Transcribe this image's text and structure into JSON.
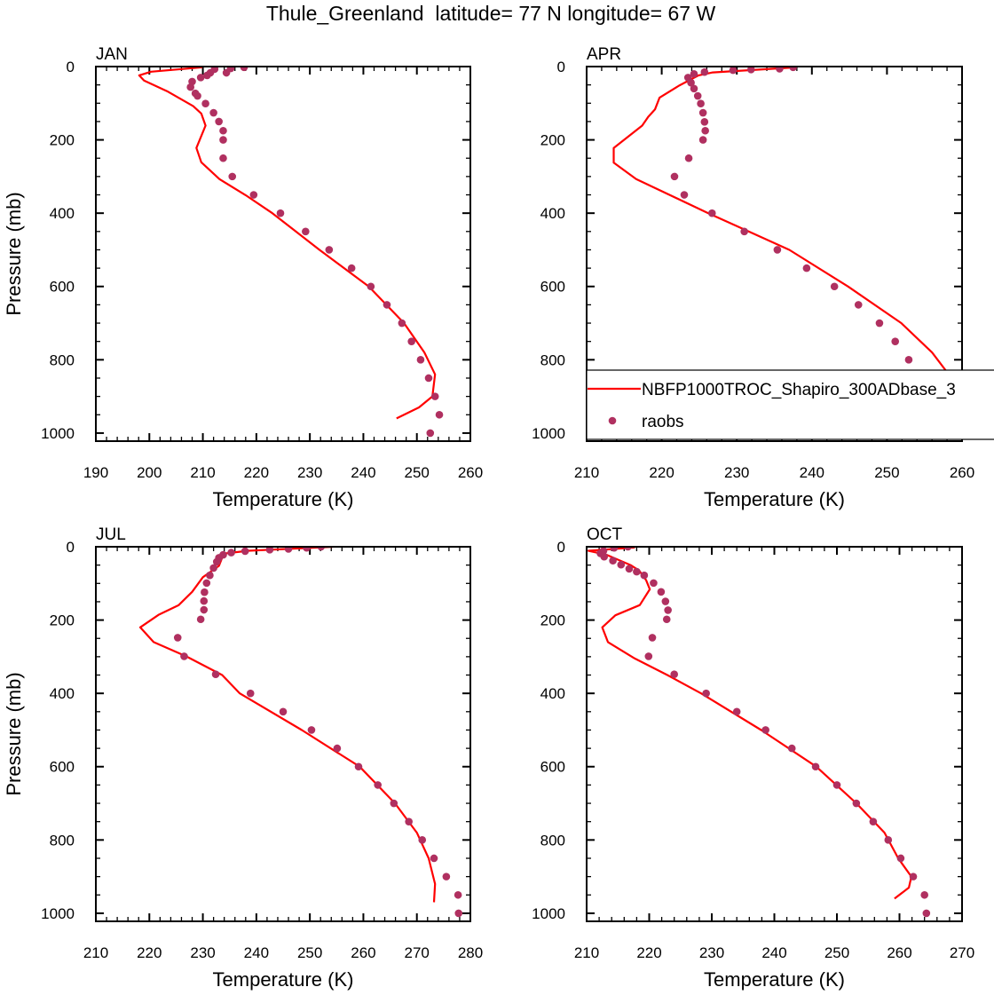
{
  "title": "Thule_Greenland  latitude= 77 N longitude= 67 W",
  "colors": {
    "model_line": "#ff0000",
    "raobs_marker": "#b03060",
    "axis": "#000000"
  },
  "legend": {
    "model_label": "NBFP1000TROC_Shapiro_300ADbase_3",
    "obs_label": "raobs",
    "placement": "inside-bottom-right of APR panel"
  },
  "chart_data": [
    {
      "type": "line+scatter",
      "panel_title": "JAN",
      "xlabel": "Temperature (K)",
      "ylabel": "Pressure (mb)",
      "xlim": [
        190,
        260
      ],
      "xticks": [
        190,
        200,
        210,
        220,
        230,
        240,
        250,
        260
      ],
      "ylim": [
        0,
        1022
      ],
      "yinverted": true,
      "yticks": [
        0,
        200,
        400,
        600,
        800,
        1000
      ],
      "grid": false,
      "model": [
        [
          2,
          209.9
        ],
        [
          14,
          200.3
        ],
        [
          24,
          198.1
        ],
        [
          38,
          199
        ],
        [
          67,
          203.3
        ],
        [
          108,
          208.2
        ],
        [
          128,
          209.7
        ],
        [
          161,
          210.5
        ],
        [
          222,
          208.8
        ],
        [
          261,
          209.7
        ],
        [
          307,
          213.1
        ],
        [
          351,
          218
        ],
        [
          400,
          223
        ],
        [
          500,
          231.8
        ],
        [
          600,
          241
        ],
        [
          700,
          247.6
        ],
        [
          780,
          251.4
        ],
        [
          840,
          253.4
        ],
        [
          900,
          252.9
        ],
        [
          930,
          250.4
        ],
        [
          960,
          246.2
        ]
      ],
      "raobs": [
        [
          2,
          217.7
        ],
        [
          5,
          215.2
        ],
        [
          17,
          214.4
        ],
        [
          7,
          212.2
        ],
        [
          17,
          211.4
        ],
        [
          24,
          210.8
        ],
        [
          30,
          209.6
        ],
        [
          41,
          208
        ],
        [
          56,
          207.7
        ],
        [
          73,
          208.6
        ],
        [
          80,
          209
        ],
        [
          101,
          210.5
        ],
        [
          126,
          212
        ],
        [
          150,
          213
        ],
        [
          175,
          213.8
        ],
        [
          200,
          213.8
        ],
        [
          250,
          213.8
        ],
        [
          300,
          215.5
        ],
        [
          350,
          219.5
        ],
        [
          400,
          224.5
        ],
        [
          450,
          229.2
        ],
        [
          500,
          233.6
        ],
        [
          550,
          237.8
        ],
        [
          600,
          241.4
        ],
        [
          650,
          244.4
        ],
        [
          700,
          247.2
        ],
        [
          750,
          249
        ],
        [
          800,
          250.7
        ],
        [
          850,
          252.2
        ],
        [
          900,
          253.4
        ],
        [
          950,
          254.2
        ],
        [
          1000,
          252.5
        ]
      ]
    },
    {
      "type": "line+scatter",
      "panel_title": "APR",
      "xlabel": "Temperature (K)",
      "ylabel": "",
      "xlim": [
        210,
        260
      ],
      "xticks": [
        210,
        220,
        230,
        240,
        250,
        260
      ],
      "ylim": [
        0,
        1022
      ],
      "yinverted": true,
      "yticks": [
        0,
        200,
        400,
        600,
        800,
        1000
      ],
      "grid": false,
      "model": [
        [
          2,
          238
        ],
        [
          16,
          226.8
        ],
        [
          24,
          224.9
        ],
        [
          52,
          222.3
        ],
        [
          85,
          219.7
        ],
        [
          117,
          219.1
        ],
        [
          137,
          218.2
        ],
        [
          161,
          217.4
        ],
        [
          222,
          213.6
        ],
        [
          262,
          213.6
        ],
        [
          307,
          216.6
        ],
        [
          400,
          226.2
        ],
        [
          500,
          237
        ],
        [
          600,
          244.8
        ],
        [
          700,
          251.9
        ],
        [
          780,
          256
        ],
        [
          850,
          258.6
        ],
        [
          900,
          259.1
        ],
        [
          950,
          258
        ],
        [
          975,
          255
        ]
      ],
      "raobs": [
        [
          2,
          237.5
        ],
        [
          6,
          235.7
        ],
        [
          8,
          231.9
        ],
        [
          10,
          229.5
        ],
        [
          15,
          225.7
        ],
        [
          20,
          224.3
        ],
        [
          30,
          223.5
        ],
        [
          44,
          223.9
        ],
        [
          60,
          224.3
        ],
        [
          80,
          224.8
        ],
        [
          101,
          225.2
        ],
        [
          126,
          225.5
        ],
        [
          151,
          225.7
        ],
        [
          175,
          225.8
        ],
        [
          200,
          225.5
        ],
        [
          250,
          223.6
        ],
        [
          300,
          221.7
        ],
        [
          350,
          223
        ],
        [
          400,
          226.7
        ],
        [
          450,
          231
        ],
        [
          500,
          235.4
        ],
        [
          550,
          239.3
        ],
        [
          600,
          243
        ],
        [
          650,
          246.2
        ],
        [
          700,
          249
        ],
        [
          750,
          251.1
        ],
        [
          800,
          252.9
        ],
        [
          850,
          254.4
        ],
        [
          900,
          255.9
        ],
        [
          950,
          256.9
        ],
        [
          1000,
          257
        ]
      ]
    },
    {
      "type": "line+scatter",
      "panel_title": "JUL",
      "xlabel": "Temperature (K)",
      "ylabel": "Pressure (mb)",
      "xlim": [
        210,
        280
      ],
      "xticks": [
        210,
        220,
        230,
        240,
        250,
        260,
        270,
        280
      ],
      "ylim": [
        0,
        1022
      ],
      "yinverted": true,
      "yticks": [
        0,
        200,
        400,
        600,
        800,
        1000
      ],
      "grid": false,
      "model": [
        [
          0,
          254.3
        ],
        [
          11,
          238.5
        ],
        [
          19,
          233.8
        ],
        [
          30,
          233.6
        ],
        [
          52,
          233
        ],
        [
          83,
          230
        ],
        [
          123,
          228
        ],
        [
          159,
          225.5
        ],
        [
          186,
          221.7
        ],
        [
          220,
          218.3
        ],
        [
          260,
          220.8
        ],
        [
          299,
          226.9
        ],
        [
          350,
          233.6
        ],
        [
          400,
          236.9
        ],
        [
          500,
          248.5
        ],
        [
          600,
          259.3
        ],
        [
          700,
          265.9
        ],
        [
          780,
          270
        ],
        [
          850,
          272.2
        ],
        [
          920,
          273.4
        ],
        [
          970,
          273.2
        ]
      ],
      "raobs": [
        [
          0,
          252.1
        ],
        [
          3,
          249.4
        ],
        [
          6,
          246
        ],
        [
          8,
          242.5
        ],
        [
          12,
          237.9
        ],
        [
          16,
          235.3
        ],
        [
          22,
          233.8
        ],
        [
          30,
          233
        ],
        [
          41,
          232.6
        ],
        [
          58,
          232
        ],
        [
          78,
          231.3
        ],
        [
          99,
          230.7
        ],
        [
          124,
          230.3
        ],
        [
          148,
          230.2
        ],
        [
          172,
          230.2
        ],
        [
          198,
          229.6
        ],
        [
          248,
          225.3
        ],
        [
          299,
          226.5
        ],
        [
          348,
          232.4
        ],
        [
          400,
          238.9
        ],
        [
          450,
          245
        ],
        [
          500,
          250.3
        ],
        [
          550,
          255.1
        ],
        [
          600,
          259.1
        ],
        [
          650,
          262.7
        ],
        [
          700,
          265.7
        ],
        [
          750,
          268.5
        ],
        [
          800,
          271
        ],
        [
          850,
          273.2
        ],
        [
          900,
          275.5
        ],
        [
          950,
          277.7
        ],
        [
          1000,
          277.8
        ]
      ]
    },
    {
      "type": "line+scatter",
      "panel_title": "OCT",
      "xlabel": "Temperature (K)",
      "ylabel": "",
      "xlim": [
        210,
        270
      ],
      "xticks": [
        210,
        220,
        230,
        240,
        250,
        260,
        270
      ],
      "ylim": [
        0,
        1022
      ],
      "yinverted": true,
      "yticks": [
        0,
        200,
        400,
        600,
        800,
        1000
      ],
      "grid": false,
      "model": [
        [
          2,
          217.7
        ],
        [
          11,
          210.3
        ],
        [
          22,
          213.2
        ],
        [
          50,
          217
        ],
        [
          65,
          218.4
        ],
        [
          91,
          219.5
        ],
        [
          116,
          220.1
        ],
        [
          159,
          218.5
        ],
        [
          187,
          214.6
        ],
        [
          220,
          212.5
        ],
        [
          260,
          213.4
        ],
        [
          305,
          217.7
        ],
        [
          350,
          222.9
        ],
        [
          400,
          228.3
        ],
        [
          500,
          237.9
        ],
        [
          600,
          246.7
        ],
        [
          700,
          253.1
        ],
        [
          780,
          257.6
        ],
        [
          850,
          259.8
        ],
        [
          900,
          261.9
        ],
        [
          930,
          261.5
        ],
        [
          960,
          259.2
        ]
      ],
      "raobs": [
        [
          0,
          216.6
        ],
        [
          3,
          214.4
        ],
        [
          11,
          212.7
        ],
        [
          18,
          212.2
        ],
        [
          27,
          212.8
        ],
        [
          38,
          214.2
        ],
        [
          49,
          215.5
        ],
        [
          60,
          216.8
        ],
        [
          68,
          218
        ],
        [
          78,
          219.2
        ],
        [
          99,
          220.7
        ],
        [
          123,
          221.9
        ],
        [
          149,
          222.6
        ],
        [
          173,
          223
        ],
        [
          198,
          222.8
        ],
        [
          248,
          220.5
        ],
        [
          299,
          219.9
        ],
        [
          348,
          224
        ],
        [
          400,
          229.1
        ],
        [
          450,
          234
        ],
        [
          500,
          238.6
        ],
        [
          550,
          242.8
        ],
        [
          600,
          246.6
        ],
        [
          650,
          250
        ],
        [
          700,
          253.1
        ],
        [
          750,
          255.8
        ],
        [
          800,
          258.2
        ],
        [
          850,
          260.2
        ],
        [
          900,
          262.2
        ],
        [
          950,
          264
        ],
        [
          1000,
          264.3
        ]
      ]
    }
  ]
}
